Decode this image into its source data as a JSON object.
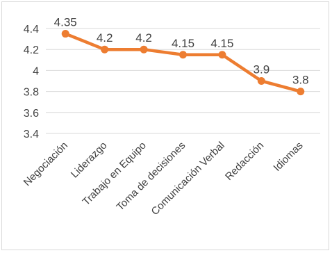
{
  "chart_data": {
    "type": "line",
    "categories": [
      "Negociación",
      "Liderazgo",
      "Trabajo en Equipo",
      "Toma de decisiones",
      "Comunicación Verbal",
      "Redacción",
      "Idiomas"
    ],
    "values": [
      4.35,
      4.2,
      4.2,
      4.15,
      4.15,
      3.9,
      3.8
    ],
    "data_labels": [
      "4.35",
      "4.2",
      "4.2",
      "4.15",
      "4.15",
      "3.9",
      "3.8"
    ],
    "y_ticks": [
      {
        "value": 4.4,
        "label": "4.4"
      },
      {
        "value": 4.2,
        "label": "4.2"
      },
      {
        "value": 4.0,
        "label": "4"
      },
      {
        "value": 3.8,
        "label": "3.8"
      },
      {
        "value": 3.6,
        "label": "3.6"
      },
      {
        "value": 3.4,
        "label": "3.4"
      }
    ],
    "ylim": [
      3.4,
      4.4
    ],
    "grid": true,
    "legend": "none",
    "title": "",
    "xlabel": "",
    "ylabel": "",
    "colors": {
      "line": "#ED7D31",
      "grid": "#d9d9d9",
      "text": "#404040"
    }
  }
}
